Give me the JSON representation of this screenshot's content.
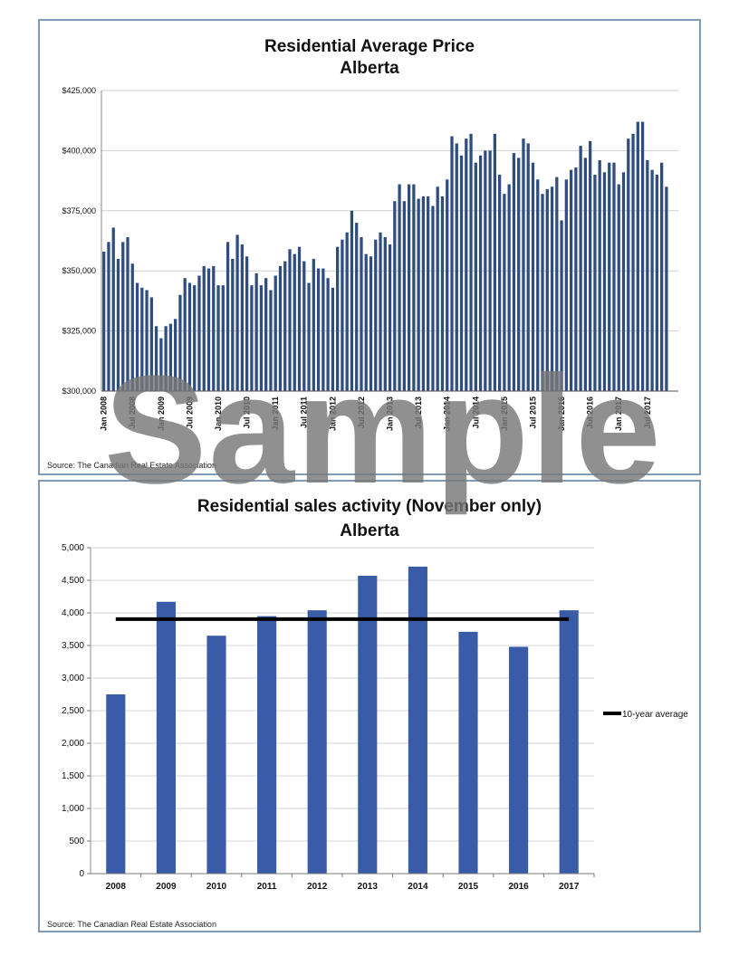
{
  "chart_data": [
    {
      "type": "bar",
      "title": "Residential Average Price",
      "subtitle": "Alberta",
      "ylim": [
        300000,
        425000
      ],
      "y_ticks": [
        "$300,000",
        "$325,000",
        "$350,000",
        "$375,000",
        "$400,000",
        "$425,000"
      ],
      "x_tick_labels": [
        "Jan 2008",
        "Jul 2008",
        "Jan 2009",
        "Jul 2009",
        "Jan 2010",
        "Jul 2010",
        "Jan 2011",
        "Jul 2011",
        "Jan 2012",
        "Jul 2012",
        "Jan 2013",
        "Jul 2013",
        "Jan 2014",
        "Jul 2014",
        "Jan 2015",
        "Jul 2015",
        "Jan 2016",
        "Jul 2016",
        "Jan 2017",
        "Jul 2017"
      ],
      "color": "#2f4d7e",
      "grid": true,
      "categories_note": "monthly Jan 2008 - Nov 2017",
      "values": [
        358000,
        362000,
        368000,
        355000,
        362000,
        364000,
        353000,
        345000,
        343000,
        342000,
        339000,
        327000,
        322000,
        327000,
        328000,
        330000,
        340000,
        347000,
        345000,
        344000,
        348000,
        352000,
        351000,
        352000,
        344000,
        344000,
        362000,
        355000,
        365000,
        361000,
        356000,
        344000,
        349000,
        344000,
        347000,
        342000,
        348000,
        352000,
        354000,
        359000,
        357000,
        360000,
        354000,
        345000,
        355000,
        351000,
        351000,
        347000,
        343000,
        360000,
        363000,
        366000,
        375000,
        370000,
        364000,
        357000,
        356000,
        363000,
        366000,
        364000,
        361000,
        379000,
        386000,
        379000,
        386000,
        386000,
        380000,
        381000,
        381000,
        377000,
        385000,
        381000,
        388000,
        406000,
        403000,
        398000,
        405000,
        407000,
        395000,
        398000,
        400000,
        400000,
        407000,
        390000,
        382000,
        386000,
        399000,
        397000,
        405000,
        403000,
        395000,
        388000,
        382000,
        384000,
        385000,
        389000,
        371000,
        388000,
        392000,
        393000,
        402000,
        397000,
        404000,
        390000,
        396000,
        391000,
        395000,
        395000,
        386000,
        391000,
        405000,
        407000,
        412000,
        412000,
        396000,
        392000,
        390000,
        395000,
        385000
      ],
      "source": "Source: The Canadian Real Estate Association"
    },
    {
      "type": "bar",
      "title": "Residential sales activity (November only)",
      "subtitle": "Alberta",
      "categories": [
        "2008",
        "2009",
        "2010",
        "2011",
        "2012",
        "2013",
        "2014",
        "2015",
        "2016",
        "2017"
      ],
      "values": [
        2750,
        4170,
        3650,
        3950,
        4040,
        4570,
        4710,
        3710,
        3480,
        4040
      ],
      "reference_line": {
        "name": "10-year average",
        "value": 3905
      },
      "ylim": [
        0,
        5000
      ],
      "y_ticks": [
        "0",
        "500",
        "1,000",
        "1,500",
        "2,000",
        "2,500",
        "3,000",
        "3,500",
        "4,000",
        "4,500",
        "5,000"
      ],
      "color": "#3a5ca8",
      "legend_position": "right",
      "grid": true,
      "source": "Source: The Canadian Real Estate Association"
    }
  ],
  "watermark": "Sample"
}
